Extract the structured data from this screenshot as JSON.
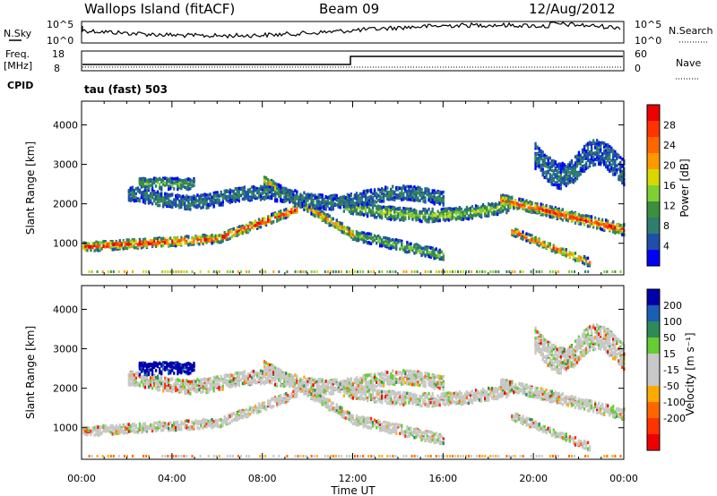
{
  "header": {
    "station": "Wallops Island (fitACF)",
    "beam": "Beam 09",
    "date": "12/Aug/2012"
  },
  "params": {
    "nsky_label": "N.Sky",
    "nsky_ticks": [
      "10^5",
      "10^0"
    ],
    "nsearch_label": "N.Search",
    "freq_label": "Freq.",
    "freq_unit": "[MHz]",
    "freq_ticks": [
      "18",
      "8"
    ],
    "nave_label": "Nave",
    "nave_ticks": [
      "60",
      "0"
    ],
    "cpid_label": "CPID",
    "cpid_value": "tau (fast) 503"
  },
  "colors": {
    "power": [
      "#0000ff",
      "#1f4fa8",
      "#2e7d6e",
      "#3c8f3c",
      "#7fd032",
      "#d8d800",
      "#ff9900",
      "#ff6600",
      "#ff3300",
      "#ee0000"
    ],
    "velocity": [
      "#0000aa",
      "#1a5fb4",
      "#2e8b57",
      "#66cc33",
      "#c8c8c8",
      "#c8c8c8",
      "#ffaa00",
      "#ff6600",
      "#ff3300",
      "#ee0000"
    ]
  },
  "chart_data": [
    {
      "type": "heatmap",
      "name": "power",
      "ylabel": "Slant Range [km]",
      "yticks": [
        "1000",
        "2000",
        "3000",
        "4000"
      ],
      "ylim": [
        200,
        4600
      ],
      "xlim": [
        0,
        24
      ],
      "colorbar_label": "Power [dB]",
      "colorbar_ticks": [
        "4",
        "8",
        "12",
        "16",
        "20",
        "24",
        "28"
      ],
      "colorbar_range": [
        0,
        32
      ]
    },
    {
      "type": "heatmap",
      "name": "velocity",
      "ylabel": "Slant Range [km]",
      "yticks": [
        "1000",
        "2000",
        "3000",
        "4000"
      ],
      "ylim": [
        200,
        4600
      ],
      "xlim": [
        0,
        24
      ],
      "colorbar_label": "Velocity [m s⁻¹]",
      "colorbar_ticks": [
        "200",
        "100",
        "50",
        "15",
        "-15",
        "-50",
        "-100",
        "-200"
      ],
      "xlabel": "Time UT",
      "xticks": [
        "00:00",
        "04:00",
        "08:00",
        "12:00",
        "16:00",
        "20:00",
        "00:00"
      ]
    }
  ]
}
